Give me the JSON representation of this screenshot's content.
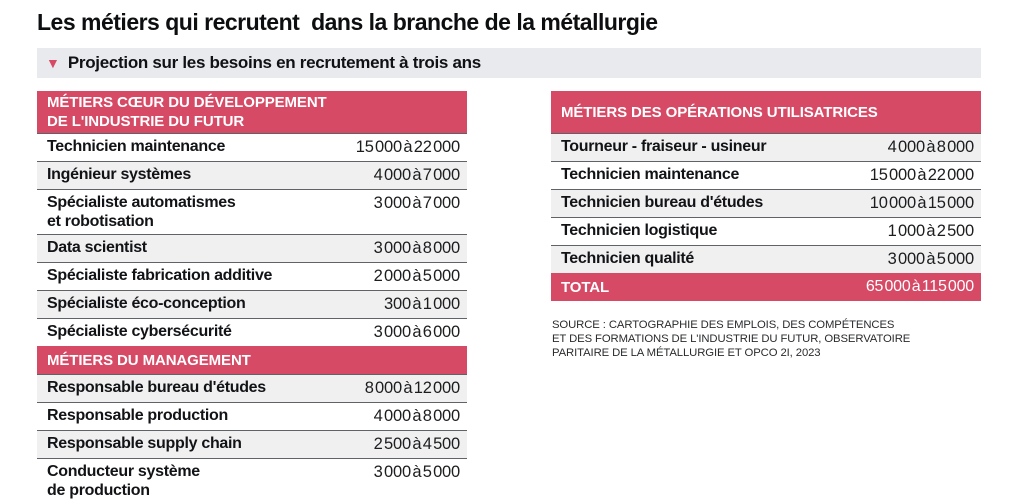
{
  "header": {
    "title": "Les métiers qui recrutent  dans la branche de la métallurgie",
    "subtitle": "Projection sur les besoins en recrutement à trois ans",
    "triangle_icon": "▼"
  },
  "colors": {
    "accent_pink": "#d64a66",
    "row_stripe": "#f0f0f1",
    "subtitle_bg": "#e8eaed",
    "divider": "#5f6266",
    "text": "#111213"
  },
  "chart_data": {
    "type": "table",
    "title": "Les métiers qui recrutent dans la branche de la métallurgie",
    "subtitle": "Projection sur les besoins en recrutement à trois ans",
    "tables": [
      {
        "id": "left",
        "sections": [
          {
            "title": "MÉTIERS CŒUR DU DÉVELOPPEMENT\nDE L'INDUSTRIE DU FUTUR",
            "rows": [
              {
                "label": "Technicien maintenance",
                "value": "15 000 à 22 000"
              },
              {
                "label": "Ingénieur systèmes",
                "value": "4 000 à 7 000"
              },
              {
                "label": "Spécialiste automatismes\net robotisation",
                "value": "3 000 à 7 000"
              },
              {
                "label": "Data scientist",
                "value": "3 000 à 8 000"
              },
              {
                "label": "Spécialiste fabrication additive",
                "value": "2 000 à 5 000"
              },
              {
                "label": "Spécialiste éco-conception",
                "value": "300 à 1 000"
              },
              {
                "label": "Spécialiste cybersécurité",
                "value": "3 000 à 6 000"
              }
            ]
          },
          {
            "title": "MÉTIERS DU MANAGEMENT",
            "rows": [
              {
                "label": "Responsable bureau d'études",
                "value": "8 000 à 12 000"
              },
              {
                "label": "Responsable production",
                "value": "4 000 à 8 000"
              },
              {
                "label": "Responsable supply chain",
                "value": "2 500 à 4 500"
              },
              {
                "label": "Conducteur système\nde production",
                "value": "3 000 à 5 000"
              }
            ]
          }
        ]
      },
      {
        "id": "right",
        "sections": [
          {
            "title": "MÉTIERS DES OPÉRATIONS UTILISATRICES",
            "rows": [
              {
                "label": "Tourneur - fraiseur - usineur",
                "value": "4 000 à 8 000"
              },
              {
                "label": "Technicien maintenance",
                "value": "15 000 à 22 000"
              },
              {
                "label": "Technicien bureau d'études",
                "value": "10 000 à 15 000"
              },
              {
                "label": "Technicien logistique",
                "value": "1 000 à 2 500"
              },
              {
                "label": "Technicien qualité",
                "value": "3 000 à 5 000"
              }
            ]
          }
        ],
        "total": {
          "label": "TOTAL",
          "value": "65 000 à 115 000"
        }
      }
    ],
    "source": "SOURCE : CARTOGRAPHIE DES EMPLOIS, DES COMPÉTENCES\nET DES FORMATIONS DE L'INDUSTRIE DU FUTUR, OBSERVATOIRE\nPARITAIRE DE LA MÉTALLURGIE ET OPCO 2I, 2023"
  }
}
